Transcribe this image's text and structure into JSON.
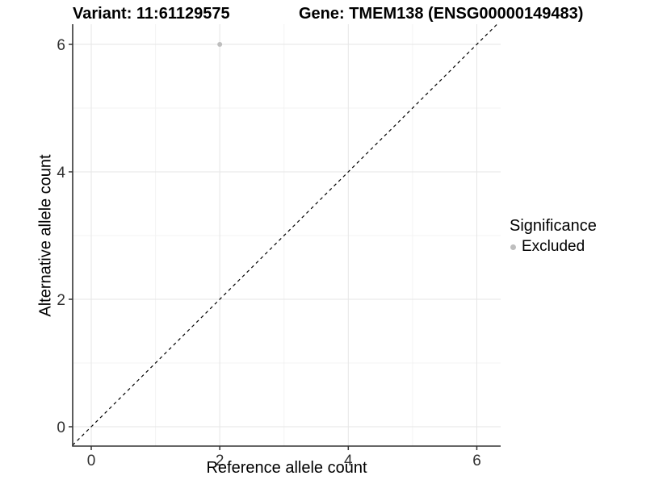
{
  "figure": {
    "title_left": "Variant: 11:61129575",
    "title_right": "Gene: TMEM138 (ENSG00000149483)"
  },
  "chart_data": {
    "type": "scatter",
    "title_left": "Variant: 11:61129575",
    "title_right": "Gene: TMEM138 (ENSG00000149483)",
    "xlabel": "Reference allele count",
    "ylabel": "Alternative allele count",
    "x_ticks": [
      0,
      2,
      4,
      6
    ],
    "y_ticks": [
      0,
      2,
      4,
      6
    ],
    "x_minor": [
      1,
      3,
      5
    ],
    "y_minor": [
      1,
      3,
      5
    ],
    "xlim": [
      -0.29,
      6.37
    ],
    "ylim": [
      -0.3,
      6.32
    ],
    "grid": "major+minor",
    "identity_line": {
      "slope": 1,
      "intercept": 0,
      "style": "dashed",
      "color": "#000000"
    },
    "points": [
      {
        "x": 2,
        "y": 6,
        "series": "Excluded",
        "color": "#bebebe"
      }
    ],
    "legend": {
      "title": "Significance",
      "position": "right",
      "entries": [
        {
          "label": "Excluded",
          "color": "#bebebe",
          "marker": "circle"
        }
      ]
    },
    "colors": {
      "grid_major": "#e6e6e6",
      "grid_minor": "#f3f3f3",
      "axis": "#333333",
      "tick_label": "#303030",
      "dashed_line": "#000000"
    }
  }
}
